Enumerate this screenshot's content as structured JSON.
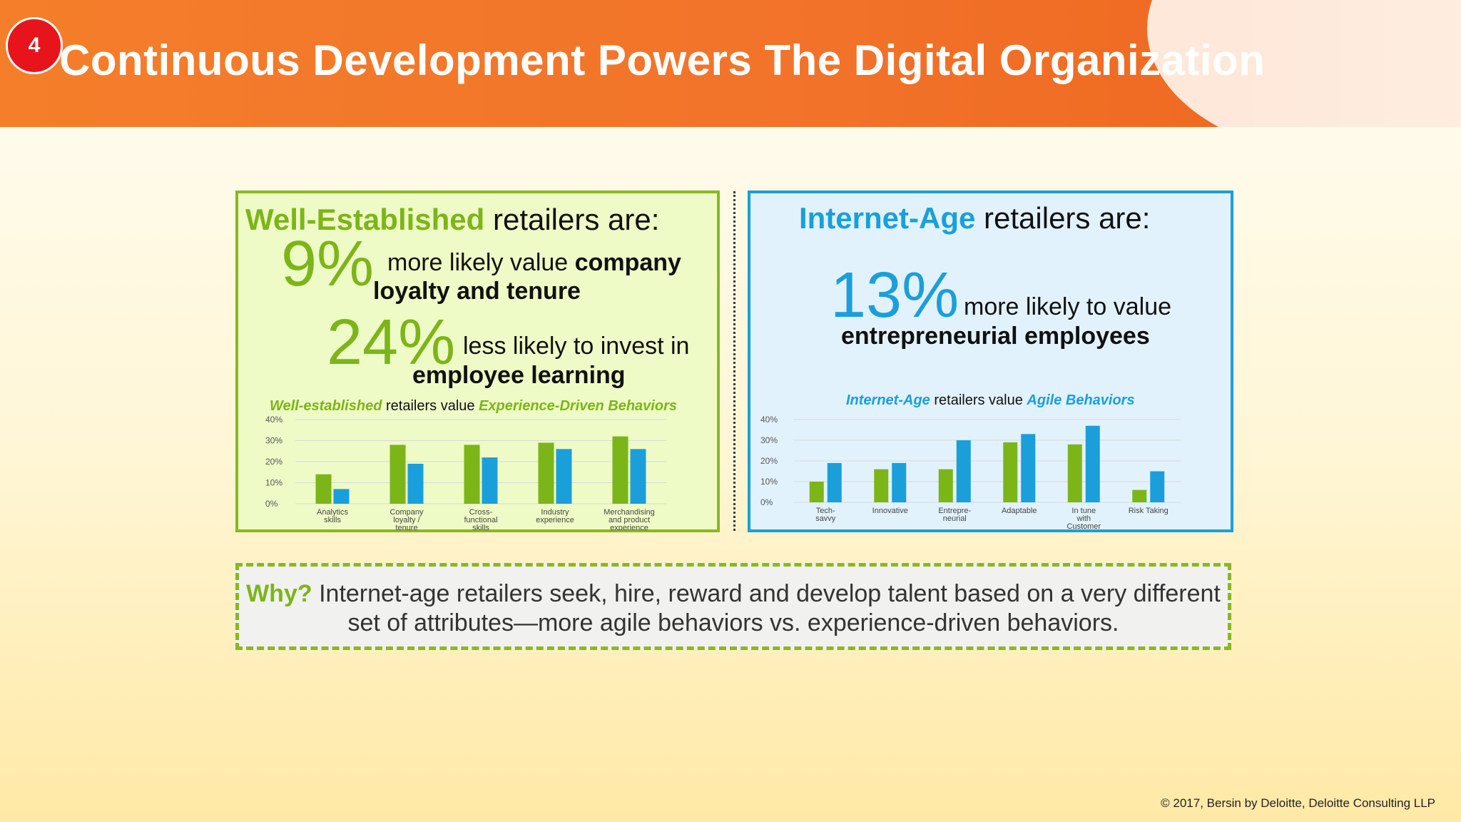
{
  "slide": {
    "number": "4",
    "title": "Continuous Development Powers The Digital Organization"
  },
  "left_panel": {
    "heading_highlight": "Well-Established",
    "heading_rest": " retailers are:",
    "stat1": {
      "pct": "9%",
      "line1_plain": "more likely value ",
      "line1_bold": "company",
      "line2_bold": "loyalty and tenure"
    },
    "stat2": {
      "pct": "24%",
      "line1_plain": "less likely to invest in",
      "line2_bold": "employee learning"
    }
  },
  "right_panel": {
    "heading_highlight": "Internet-Age",
    "heading_rest": " retailers are:",
    "stat1": {
      "pct": "13%",
      "line1_plain": "more likely to value",
      "line2_bold": "entrepreneurial employees"
    }
  },
  "why": {
    "label": "Why?",
    "line1": " Internet-age retailers seek, hire, reward and develop talent based on a very different",
    "line2": "set of attributes—more agile behaviors vs. experience-driven behaviors."
  },
  "footer": "© 2017, Bersin by Deloitte, Deloitte Consulting LLP",
  "colors": {
    "green": "#7cb518",
    "blue": "#1a9fdb",
    "header_orange": "#f2742a",
    "badge_red": "#e8141b"
  },
  "chart_data": [
    {
      "type": "bar",
      "title_parts": [
        "Well-established",
        " retailers value ",
        "Experience-Driven Behaviors"
      ],
      "categories": [
        [
          "Analytics",
          "skills"
        ],
        [
          "Company",
          "loyalty /",
          "tenure"
        ],
        [
          "Cross-",
          "functional",
          "skills"
        ],
        [
          "Industry",
          "experience"
        ],
        [
          "Merchandising",
          "and product",
          "experience"
        ]
      ],
      "series": [
        {
          "color": "#7cb518",
          "values": [
            14,
            28,
            28,
            29,
            32
          ]
        },
        {
          "color": "#1a9fdb",
          "values": [
            7,
            19,
            22,
            26,
            26
          ]
        }
      ],
      "yticks": [
        "0%",
        "10%",
        "20%",
        "30%",
        "40%"
      ],
      "ylim": [
        0,
        40
      ],
      "grid": true
    },
    {
      "type": "bar",
      "title_parts": [
        "Internet-Age",
        " retailers value ",
        "Agile Behaviors"
      ],
      "categories": [
        [
          "Tech-",
          "savvy"
        ],
        [
          "Innovative"
        ],
        [
          "Entrepre-",
          "neurial"
        ],
        [
          "Adaptable"
        ],
        [
          "In tune",
          "with",
          "Customer"
        ],
        [
          "Risk Taking"
        ]
      ],
      "series": [
        {
          "color": "#7cb518",
          "values": [
            10,
            16,
            16,
            29,
            28,
            6
          ]
        },
        {
          "color": "#1a9fdb",
          "values": [
            19,
            19,
            30,
            33,
            37,
            15
          ]
        }
      ],
      "yticks": [
        "0%",
        "10%",
        "20%",
        "30%",
        "40%"
      ],
      "ylim": [
        0,
        40
      ],
      "grid": true
    }
  ]
}
